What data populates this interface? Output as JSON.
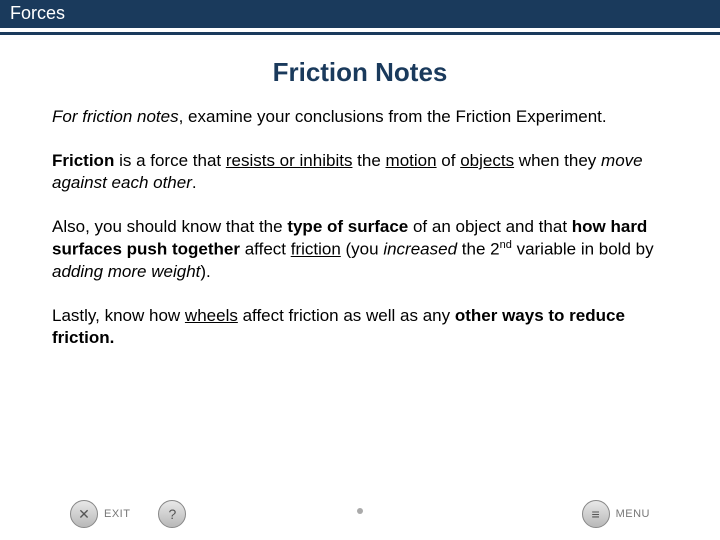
{
  "header": {
    "title": "Forces"
  },
  "slide": {
    "title": "Friction Notes"
  },
  "p1": {
    "seg1": "For friction notes",
    "seg2": ", examine your conclusions from the Friction Experiment."
  },
  "p2": {
    "seg1": "Friction",
    "seg2": " is a force that ",
    "seg3": "resists or inhibits",
    "seg4": " the ",
    "seg5": "motion",
    "seg6": " of ",
    "seg7": "objects",
    "seg8": " when they ",
    "seg9": "move against each other",
    "seg10": "."
  },
  "p3": {
    "seg1": "Also, you should know that the ",
    "seg2": "type of surface",
    "seg3": " of an object and that ",
    "seg4": "how hard surfaces push together",
    "seg5": " affect ",
    "seg6": "friction",
    "seg7": " (you ",
    "seg8": "increased",
    "seg9": " the 2",
    "seg10": "nd",
    "seg11": " variable in bold by ",
    "seg12": "adding more weight",
    "seg13": ")."
  },
  "p4": {
    "seg1": "Lastly, know how ",
    "seg2": "wheels",
    "seg3": " affect friction as well as any ",
    "seg4": "other ways to reduce friction."
  },
  "nav": {
    "exit": "EXIT",
    "menu": "MENU",
    "help_symbol": "?",
    "exit_symbol": "✕",
    "menu_symbol": "≡"
  },
  "colors": {
    "header_bg": "#1a3a5c",
    "title_color": "#1a3a5c",
    "body_text": "#000000",
    "nav_text": "#777777"
  }
}
